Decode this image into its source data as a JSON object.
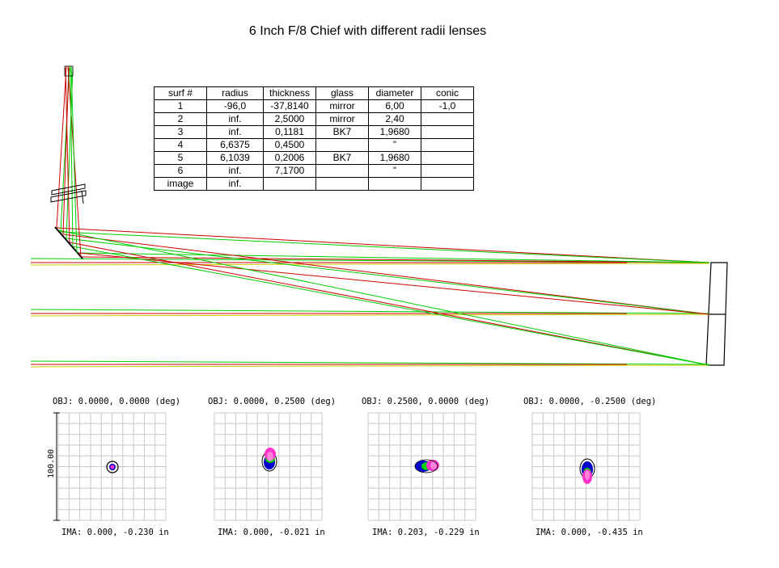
{
  "title": "6 Inch F/8 Chief with different radii lenses",
  "table": {
    "headers": [
      "surf #",
      "radius",
      "thickness",
      "glass",
      "diameter",
      "conic"
    ],
    "rows": [
      [
        "1",
        "-96,0",
        "-37,8140",
        "mirror",
        "6,00",
        "-1,0"
      ],
      [
        "2",
        "inf.",
        "2,5000",
        "mirror",
        "2,40",
        ""
      ],
      [
        "3",
        "inf.",
        "0,1181",
        "BK7",
        "1,9680",
        ""
      ],
      [
        "4",
        "6,6375",
        "0,4500",
        "",
        "\"",
        ""
      ],
      [
        "5",
        "6,1039",
        "0,2006",
        "BK7",
        "1,9680",
        ""
      ],
      [
        "6",
        "inf.",
        "7,1700",
        "",
        "\"",
        ""
      ],
      [
        "image",
        "inf.",
        "",
        "",
        "",
        ""
      ]
    ]
  },
  "colors": {
    "red_rays": "#cc0000",
    "green_rays": "#00cc00",
    "yellow_rays": "#cccc00",
    "spot_blue": "#0000cc",
    "spot_magenta": "#ff33cc",
    "grid": "#c8c8c8"
  },
  "spot_diagrams": [
    {
      "obj": "OBJ: 0.0000, 0.0000 (deg)",
      "ima": "IMA: 0.000, -0.230 in",
      "scale": "100.00"
    },
    {
      "obj": "OBJ: 0.0000, 0.2500 (deg)",
      "ima": "IMA: 0.000, -0.021 in"
    },
    {
      "obj": "OBJ: 0.2500, 0.0000 (deg)",
      "ima": "IMA: 0.203, -0.229 in"
    },
    {
      "obj": "OBJ: 0.0000, -0.2500 (deg)",
      "ima": "IMA: 0.000, -0.435 in"
    }
  ]
}
